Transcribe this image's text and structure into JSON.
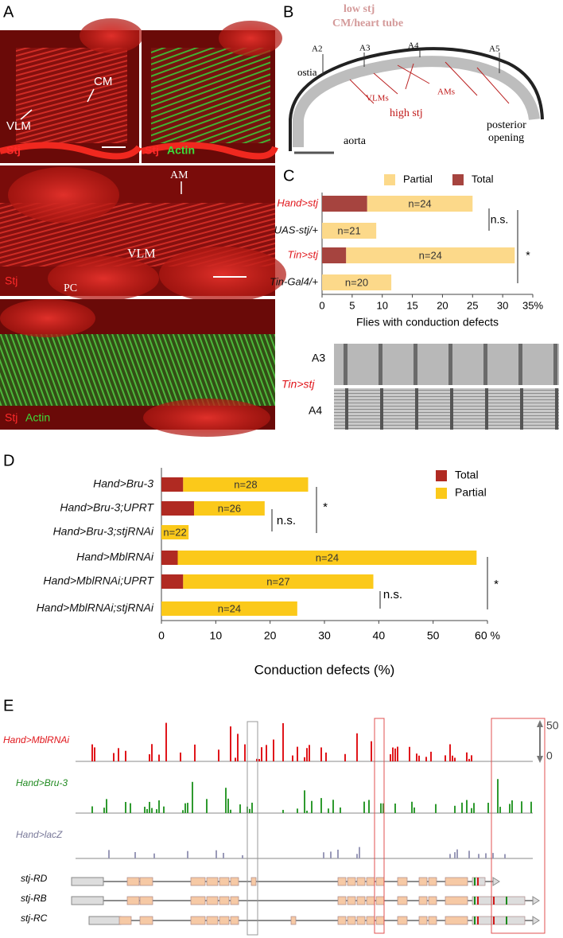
{
  "panel_a": {
    "label": "A",
    "top_left": {
      "cm": "CM",
      "vlm": "VLM",
      "stain": "Stj"
    },
    "top_right": {
      "stain": "Stj",
      "actin": "Actin"
    },
    "middle": {
      "am": "AM",
      "vlm": "VLM",
      "stain": "Stj",
      "pc": "PC"
    },
    "bottom": {
      "stain": "Stj",
      "actin": "Actin"
    }
  },
  "panel_b": {
    "label": "B",
    "low": "low stj",
    "tube": "CM/heart tube",
    "segments": [
      "A2",
      "A3",
      "A4",
      "A5"
    ],
    "ostia": "ostia",
    "vlms": "VLMs",
    "ams": "AMs",
    "high": "high stj",
    "posterior": "posterior",
    "opening": "opening",
    "aorta": "aorta"
  },
  "panel_c": {
    "label": "C",
    "kymograph": [
      "A3",
      "Tin>stj",
      "A4"
    ]
  },
  "panel_d": {
    "label": "D"
  },
  "panel_e": {
    "label": "E",
    "tracks": [
      "Hand>MblRNAi",
      "Hand>Bru-3",
      "Hand>lacZ"
    ],
    "isoforms": [
      "stj-RD",
      "stj-RB",
      "stj-RC"
    ],
    "scale": [
      "50",
      "0"
    ]
  },
  "chart_data": [
    {
      "type": "bar",
      "orientation": "horizontal",
      "stacked": true,
      "categories": [
        "Hand>stj",
        "UAS-stj/+",
        "Tin>stj",
        "Tin-Gal4/+"
      ],
      "category_colors": [
        "#e0161b",
        "#111111",
        "#e0161b",
        "#111111"
      ],
      "series": [
        {
          "name": "Total",
          "color": "#a6443f",
          "values": [
            7.5,
            0,
            4,
            0
          ]
        },
        {
          "name": "Partial",
          "color": "#fcd98a",
          "values": [
            17.5,
            9,
            28,
            11.5
          ]
        }
      ],
      "n_labels": [
        "n=24",
        "n=21",
        "n=24",
        "n=20"
      ],
      "xlim": [
        0,
        35
      ],
      "xticks": [
        0,
        5,
        10,
        15,
        20,
        25,
        30,
        {
          "value": 35,
          "label": "35%"
        }
      ],
      "xlabel": "Flies with conduction defects",
      "legend_reversed": true,
      "significance": [
        "n.s.",
        "*"
      ]
    },
    {
      "type": "bar",
      "orientation": "horizontal",
      "stacked": true,
      "categories": [
        "Hand>Bru-3",
        "Hand>Bru-3;UPRT",
        "Hand>Bru-3;stjRNAi",
        "Hand>MblRNAi",
        "Hand>MblRNAi;UPRT",
        "Hand>MblRNAi;stjRNAi"
      ],
      "category_colors": [
        "#111111",
        "#111111",
        "#111111",
        "#111111",
        "#111111",
        "#111111"
      ],
      "series": [
        {
          "name": "Total",
          "color": "#b02a22",
          "values": [
            4,
            6,
            0,
            3,
            4,
            0
          ]
        },
        {
          "name": "Partial",
          "color": "#fbc91a",
          "values": [
            23,
            13,
            5,
            55,
            35,
            25
          ]
        }
      ],
      "n_labels": [
        "n=28",
        "n=26",
        "n=22",
        "n=24",
        "n=27",
        "n=24"
      ],
      "xlim": [
        0,
        60
      ],
      "xticks": [
        0,
        10,
        20,
        30,
        40,
        50,
        {
          "value": 60,
          "label": "60 %"
        }
      ],
      "xlabel": "Conduction defects (%)",
      "legend_reversed": false,
      "significance": [
        "n.s.",
        "*",
        "n.s.",
        "*"
      ]
    }
  ]
}
